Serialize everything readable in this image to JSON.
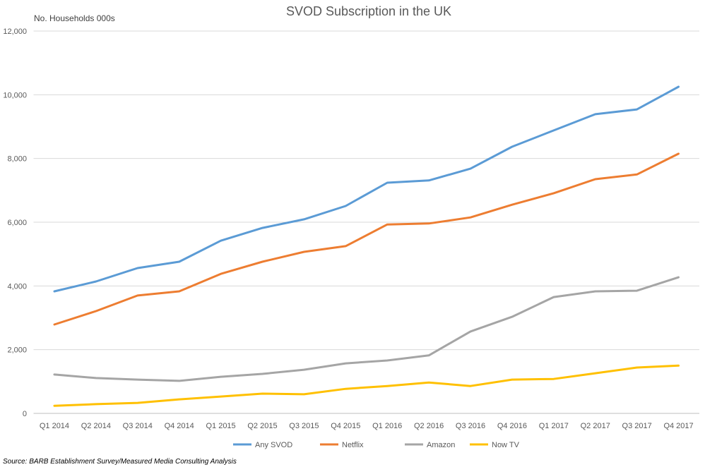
{
  "chart_data": {
    "type": "line",
    "title": "SVOD Subscription in the UK",
    "ylabel": "No. Households 000s",
    "xlabel": "",
    "source": "Source: BARB Establishment Survey/Measured Media Consulting Analysis",
    "ylim": [
      0,
      12000
    ],
    "yticks": [
      0,
      2000,
      4000,
      6000,
      8000,
      10000,
      12000
    ],
    "ytick_labels": [
      "0",
      "2,000",
      "4,000",
      "6,000",
      "8,000",
      "10,000",
      "12,000"
    ],
    "grid": true,
    "legend_position": "bottom",
    "categories": [
      "Q1 2014",
      "Q2 2014",
      "Q3 2014",
      "Q4 2014",
      "Q1 2015",
      "Q2 2015",
      "Q3 2015",
      "Q4 2015",
      "Q1 2016",
      "Q2 2016",
      "Q3 2016",
      "Q4 2016",
      "Q1 2017",
      "Q2 2017",
      "Q3 2017",
      "Q4 2017"
    ],
    "series": [
      {
        "name": "Any SVOD",
        "color": "#5B9BD5",
        "values": [
          3830,
          4140,
          4560,
          4760,
          5420,
          5820,
          6090,
          6510,
          7240,
          7310,
          7680,
          8370,
          8880,
          9390,
          9540,
          10250
        ]
      },
      {
        "name": "Netflix",
        "color": "#ED7D31",
        "values": [
          2790,
          3210,
          3700,
          3830,
          4380,
          4760,
          5070,
          5250,
          5930,
          5960,
          6150,
          6550,
          6910,
          7350,
          7500,
          8150
        ]
      },
      {
        "name": "Amazon",
        "color": "#A5A5A5",
        "values": [
          1220,
          1110,
          1060,
          1020,
          1150,
          1240,
          1370,
          1570,
          1660,
          1820,
          2570,
          3030,
          3650,
          3830,
          3850,
          4270
        ]
      },
      {
        "name": "Now TV",
        "color": "#FFC000",
        "values": [
          240,
          290,
          330,
          440,
          530,
          620,
          600,
          770,
          860,
          970,
          860,
          1060,
          1080,
          1260,
          1440,
          1500
        ]
      }
    ]
  }
}
